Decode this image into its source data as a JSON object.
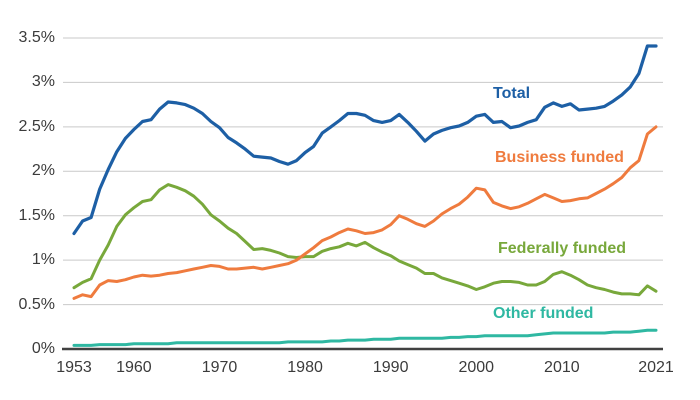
{
  "chart_data": {
    "type": "line",
    "grid": "horizontal",
    "legend_position": "inline-labels",
    "xlim": [
      1953,
      2021
    ],
    "ylim": [
      0,
      3.5
    ],
    "y_tick_labels": [
      "3.5%",
      "3%",
      "2.5%",
      "2%",
      "1.5%",
      "1%",
      "0.5%",
      "0%"
    ],
    "y_tick_values": [
      3.5,
      3.0,
      2.5,
      2.0,
      1.5,
      1.0,
      0.5,
      0.0
    ],
    "x_tick_labels": [
      "1953",
      "1960",
      "1970",
      "1980",
      "1990",
      "2000",
      "2010",
      "2021"
    ],
    "x_tick_values": [
      1953,
      1960,
      1970,
      1980,
      1990,
      2000,
      2010,
      2021
    ],
    "x": [
      1953,
      1954,
      1955,
      1956,
      1957,
      1958,
      1959,
      1960,
      1961,
      1962,
      1963,
      1964,
      1965,
      1966,
      1967,
      1968,
      1969,
      1970,
      1971,
      1972,
      1973,
      1974,
      1975,
      1976,
      1977,
      1978,
      1979,
      1980,
      1981,
      1982,
      1983,
      1984,
      1985,
      1986,
      1987,
      1988,
      1989,
      1990,
      1991,
      1992,
      1993,
      1994,
      1995,
      1996,
      1997,
      1998,
      1999,
      2000,
      2001,
      2002,
      2003,
      2004,
      2005,
      2006,
      2007,
      2008,
      2009,
      2010,
      2011,
      2012,
      2013,
      2014,
      2015,
      2016,
      2017,
      2018,
      2019,
      2020,
      2021
    ],
    "series": [
      {
        "name": "Total",
        "color": "#1d5fa5",
        "values": [
          1.3,
          1.44,
          1.48,
          1.8,
          2.02,
          2.22,
          2.37,
          2.47,
          2.56,
          2.58,
          2.7,
          2.78,
          2.77,
          2.75,
          2.71,
          2.65,
          2.56,
          2.49,
          2.38,
          2.32,
          2.25,
          2.17,
          2.16,
          2.15,
          2.11,
          2.08,
          2.12,
          2.21,
          2.28,
          2.43,
          2.5,
          2.57,
          2.65,
          2.65,
          2.63,
          2.57,
          2.55,
          2.57,
          2.64,
          2.55,
          2.45,
          2.34,
          2.42,
          2.46,
          2.49,
          2.51,
          2.55,
          2.62,
          2.64,
          2.55,
          2.56,
          2.49,
          2.51,
          2.55,
          2.58,
          2.72,
          2.77,
          2.73,
          2.76,
          2.69,
          2.7,
          2.71,
          2.73,
          2.79,
          2.86,
          2.95,
          3.1,
          3.41,
          3.41
        ]
      },
      {
        "name": "Business funded",
        "color": "#ef7b3e",
        "values": [
          0.57,
          0.61,
          0.59,
          0.72,
          0.77,
          0.76,
          0.78,
          0.81,
          0.83,
          0.82,
          0.83,
          0.85,
          0.86,
          0.88,
          0.9,
          0.92,
          0.94,
          0.93,
          0.9,
          0.9,
          0.91,
          0.92,
          0.9,
          0.92,
          0.94,
          0.96,
          1.0,
          1.07,
          1.14,
          1.22,
          1.26,
          1.31,
          1.35,
          1.33,
          1.3,
          1.31,
          1.34,
          1.4,
          1.5,
          1.46,
          1.41,
          1.38,
          1.44,
          1.52,
          1.58,
          1.63,
          1.71,
          1.81,
          1.79,
          1.65,
          1.61,
          1.58,
          1.6,
          1.64,
          1.69,
          1.74,
          1.7,
          1.66,
          1.67,
          1.69,
          1.7,
          1.75,
          1.8,
          1.86,
          1.93,
          2.04,
          2.12,
          2.42,
          2.5
        ]
      },
      {
        "name": "Federally funded",
        "color": "#78a83b",
        "values": [
          0.69,
          0.75,
          0.79,
          1.0,
          1.17,
          1.38,
          1.51,
          1.59,
          1.66,
          1.68,
          1.79,
          1.85,
          1.82,
          1.78,
          1.72,
          1.63,
          1.51,
          1.44,
          1.36,
          1.3,
          1.21,
          1.12,
          1.13,
          1.11,
          1.08,
          1.04,
          1.03,
          1.04,
          1.04,
          1.1,
          1.13,
          1.15,
          1.19,
          1.16,
          1.2,
          1.14,
          1.09,
          1.05,
          0.99,
          0.95,
          0.91,
          0.85,
          0.85,
          0.8,
          0.77,
          0.74,
          0.71,
          0.67,
          0.7,
          0.74,
          0.76,
          0.76,
          0.75,
          0.72,
          0.72,
          0.76,
          0.84,
          0.87,
          0.83,
          0.78,
          0.72,
          0.69,
          0.67,
          0.64,
          0.62,
          0.62,
          0.61,
          0.71,
          0.65
        ]
      },
      {
        "name": "Other funded",
        "color": "#2fb8a2",
        "values": [
          0.04,
          0.04,
          0.04,
          0.05,
          0.05,
          0.05,
          0.05,
          0.06,
          0.06,
          0.06,
          0.06,
          0.06,
          0.07,
          0.07,
          0.07,
          0.07,
          0.07,
          0.07,
          0.07,
          0.07,
          0.07,
          0.07,
          0.07,
          0.07,
          0.07,
          0.08,
          0.08,
          0.08,
          0.08,
          0.08,
          0.09,
          0.09,
          0.1,
          0.1,
          0.1,
          0.11,
          0.11,
          0.11,
          0.12,
          0.12,
          0.12,
          0.12,
          0.12,
          0.12,
          0.13,
          0.13,
          0.14,
          0.14,
          0.15,
          0.15,
          0.15,
          0.15,
          0.15,
          0.15,
          0.16,
          0.17,
          0.18,
          0.18,
          0.18,
          0.18,
          0.18,
          0.18,
          0.18,
          0.19,
          0.19,
          0.19,
          0.2,
          0.21,
          0.21
        ]
      }
    ]
  },
  "colors": {
    "gridline": "#c9c9c9",
    "axis": "#414141",
    "tick_text": "#3b3b3b",
    "background": "#ffffff"
  }
}
